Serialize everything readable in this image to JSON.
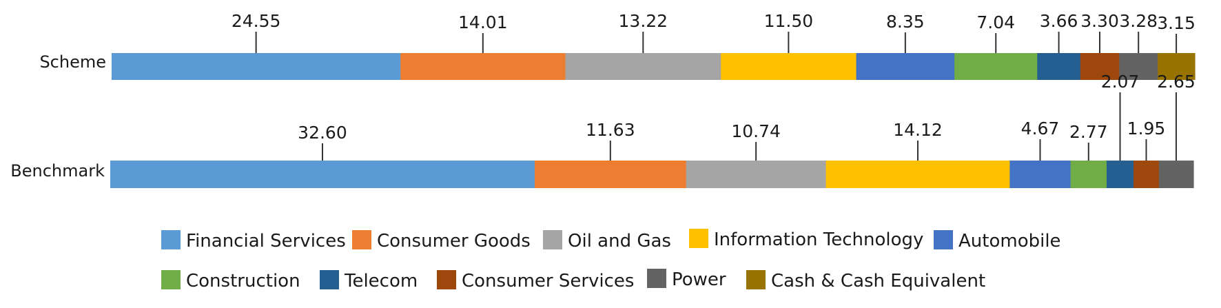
{
  "chart_data": {
    "type": "bar",
    "orientation": "horizontal",
    "stacked": true,
    "grid": false,
    "legend_position": "bottom",
    "categories": [
      "Scheme",
      "Benchmark"
    ],
    "series": [
      {
        "name": "Financial Services",
        "color": "#5B9BD5",
        "values": [
          24.55,
          32.6
        ]
      },
      {
        "name": "Consumer Goods",
        "color": "#ED7D31",
        "values": [
          14.01,
          11.63
        ]
      },
      {
        "name": "Oil and Gas",
        "color": "#A5A5A5",
        "values": [
          13.22,
          10.74
        ]
      },
      {
        "name": "Information Technology",
        "color": "#FFC000",
        "values": [
          11.5,
          14.12
        ]
      },
      {
        "name": "Automobile",
        "color": "#4472C4",
        "values": [
          8.35,
          4.67
        ]
      },
      {
        "name": "Construction",
        "color": "#70AD47",
        "values": [
          7.04,
          2.77
        ]
      },
      {
        "name": "Telecom",
        "color": "#255E91",
        "values": [
          3.66,
          2.07
        ]
      },
      {
        "name": "Consumer Services",
        "color": "#9E480E",
        "values": [
          3.3,
          1.95
        ]
      },
      {
        "name": "Power",
        "color": "#636363",
        "values": [
          3.28,
          2.65
        ]
      },
      {
        "name": "Cash & Cash Equivalent",
        "color": "#997300",
        "values": [
          3.15,
          null
        ]
      }
    ],
    "value_labels": [
      [
        "24.55",
        "14.01",
        "13.22",
        "11.50",
        "8.35",
        "7.04",
        "3.66",
        "3.30",
        "3.28",
        "3.15"
      ],
      [
        "32.60",
        "11.63",
        "10.74",
        "14.12",
        "4.67",
        "2.77",
        "2.07",
        "1.95",
        "2.65",
        ""
      ]
    ]
  }
}
